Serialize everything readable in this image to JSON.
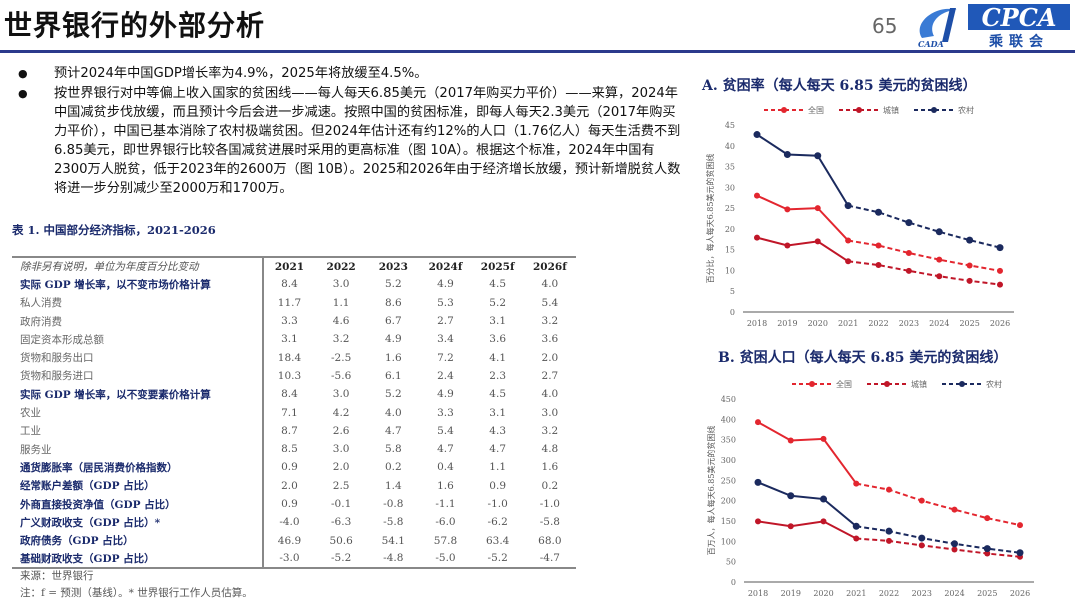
{
  "header": {
    "title": "世界银行的外部分析",
    "page_number": "65",
    "logo_text": "CPCA",
    "logo_sub": "乘联会",
    "logo_left": "CADA"
  },
  "bullets": [
    "预计2024年中国GDP增长率为4.9%，2025年将放缓至4.5%。",
    "按世界银行对中等偏上收入国家的贫困线——每人每天6.85美元（2017年购买力平价）——来算，2024年中国减贫步伐放缓，而且预计今后会进一步减速。按照中国的贫困标准，即每人每天2.3美元（2017年购买力平价），中国已基本消除了农村极端贫困。但2024年估计还有约12%的人口（1.76亿人）每天生活费不到6.85美元，即世界银行比较各国减贫进展时采用的更高标准（图 10A）。根据这个标准，2024年中国有2300万人脱贫，低于2023年的2600万（图 10B）。2025和2026年由于经济增长放缓，预计新增脱贫人数将进一步分别减少至2000万和1700万。"
  ],
  "table": {
    "title": "表 1. 中国部分经济指标，2021-2026",
    "header_label": "除非另有说明，单位为年度百分比变动",
    "columns": [
      "2021",
      "2022",
      "2023",
      "2024f",
      "2025f",
      "2026f"
    ],
    "rows": [
      {
        "label": "实际 GDP 增长率，以不变市场价格计算",
        "style": "bold",
        "values": [
          "8.4",
          "3.0",
          "5.2",
          "4.9",
          "4.5",
          "4.0"
        ]
      },
      {
        "label": "私人消费",
        "style": "sub",
        "values": [
          "11.7",
          "1.1",
          "8.6",
          "5.3",
          "5.2",
          "5.4"
        ]
      },
      {
        "label": "政府消费",
        "style": "sub",
        "values": [
          "3.3",
          "4.6",
          "6.7",
          "2.7",
          "3.1",
          "3.2"
        ]
      },
      {
        "label": "固定资本形成总额",
        "style": "sub",
        "values": [
          "3.1",
          "3.2",
          "4.9",
          "3.4",
          "3.6",
          "3.6"
        ]
      },
      {
        "label": "货物和服务出口",
        "style": "sub",
        "values": [
          "18.4",
          "-2.5",
          "1.6",
          "7.2",
          "4.1",
          "2.0"
        ]
      },
      {
        "label": "货物和服务进口",
        "style": "sub",
        "values": [
          "10.3",
          "-5.6",
          "6.1",
          "2.4",
          "2.3",
          "2.7"
        ]
      },
      {
        "label": "实际 GDP 增长率，以不变要素价格计算",
        "style": "bold",
        "values": [
          "8.4",
          "3.0",
          "5.2",
          "4.9",
          "4.5",
          "4.0"
        ]
      },
      {
        "label": "农业",
        "style": "sub",
        "values": [
          "7.1",
          "4.2",
          "4.0",
          "3.3",
          "3.1",
          "3.0"
        ]
      },
      {
        "label": "工业",
        "style": "sub",
        "values": [
          "8.7",
          "2.6",
          "4.7",
          "5.4",
          "4.3",
          "3.2"
        ]
      },
      {
        "label": "服务业",
        "style": "sub",
        "values": [
          "8.5",
          "3.0",
          "5.8",
          "4.7",
          "4.7",
          "4.8"
        ]
      },
      {
        "label": "通货膨胀率（居民消费价格指数）",
        "style": "bold",
        "values": [
          "0.9",
          "2.0",
          "0.2",
          "0.4",
          "1.1",
          "1.6"
        ]
      },
      {
        "label": "经常账户差额（GDP 占比）",
        "style": "bold",
        "values": [
          "2.0",
          "2.5",
          "1.4",
          "1.6",
          "0.9",
          "0.2"
        ]
      },
      {
        "label": "外商直接投资净值（GDP 占比）",
        "style": "bold",
        "values": [
          "0.9",
          "-0.1",
          "-0.8",
          "-1.1",
          "-1.0",
          "-1.0"
        ]
      },
      {
        "label": "广义财政收支（GDP 占比）*",
        "style": "bold",
        "values": [
          "-4.0",
          "-6.3",
          "-5.8",
          "-6.0",
          "-6.2",
          "-5.8"
        ]
      },
      {
        "label": "政府债务（GDP 占比）",
        "style": "bold",
        "values": [
          "46.9",
          "50.6",
          "54.1",
          "57.8",
          "63.4",
          "68.0"
        ]
      },
      {
        "label": "基础财政收支（GDP 占比）",
        "style": "bold",
        "values": [
          "-3.0",
          "-5.2",
          "-4.8",
          "-5.0",
          "-5.2",
          "-4.7"
        ]
      }
    ],
    "source": "来源：世界银行",
    "note": "注：f = 预测（基线）。* 世界银行工作人员估算。"
  },
  "chart_data": [
    {
      "type": "line",
      "title": "A. 贫困率（每人每天 6.85 美元的贫困线）",
      "ylabel": "百分比，每人每天6.85美元的贫困线",
      "ylim": [
        0,
        45
      ],
      "yticks": [
        0,
        5,
        10,
        15,
        20,
        25,
        30,
        35,
        40,
        45
      ],
      "legend_position": "top",
      "grid": false,
      "x": [
        "2018",
        "2019",
        "2020",
        "2021",
        "2022",
        "2023",
        "2024",
        "2025",
        "2026"
      ],
      "forecast_from": "2021",
      "series": [
        {
          "name": "全国",
          "color": "#e3262f",
          "values": [
            28.0,
            24.7,
            25.0,
            17.2,
            16.0,
            14.2,
            12.6,
            11.2,
            9.9
          ]
        },
        {
          "name": "城镇",
          "color": "#c01628",
          "values": [
            17.9,
            16.0,
            17.0,
            12.2,
            11.3,
            9.9,
            8.6,
            7.5,
            6.6
          ]
        },
        {
          "name": "农村",
          "color": "#1b2a5e",
          "values": [
            42.7,
            37.9,
            37.6,
            25.6,
            24.0,
            21.5,
            19.3,
            17.3,
            15.5
          ]
        }
      ]
    },
    {
      "type": "line",
      "title": "B. 贫困人口（每人每天 6.85 美元的贫困线）",
      "ylabel": "百万人，每人每天6.85美元的贫困线",
      "ylim": [
        0,
        450
      ],
      "yticks": [
        0,
        50,
        100,
        150,
        200,
        250,
        300,
        350,
        400,
        450
      ],
      "legend_position": "top",
      "grid": false,
      "x": [
        "2018",
        "2019",
        "2020",
        "2021",
        "2022",
        "2023",
        "2024",
        "2025",
        "2026"
      ],
      "forecast_from": "2021",
      "series": [
        {
          "name": "全国",
          "color": "#e3262f",
          "values": [
            393,
            348,
            352,
            242,
            227,
            200,
            178,
            157,
            140
          ]
        },
        {
          "name": "城镇",
          "color": "#c01628",
          "values": [
            149,
            137,
            149,
            107,
            101,
            90,
            80,
            70,
            62
          ]
        },
        {
          "name": "农村",
          "color": "#1b2a5e",
          "values": [
            245,
            212,
            204,
            137,
            125,
            108,
            94,
            82,
            72
          ]
        }
      ]
    }
  ]
}
